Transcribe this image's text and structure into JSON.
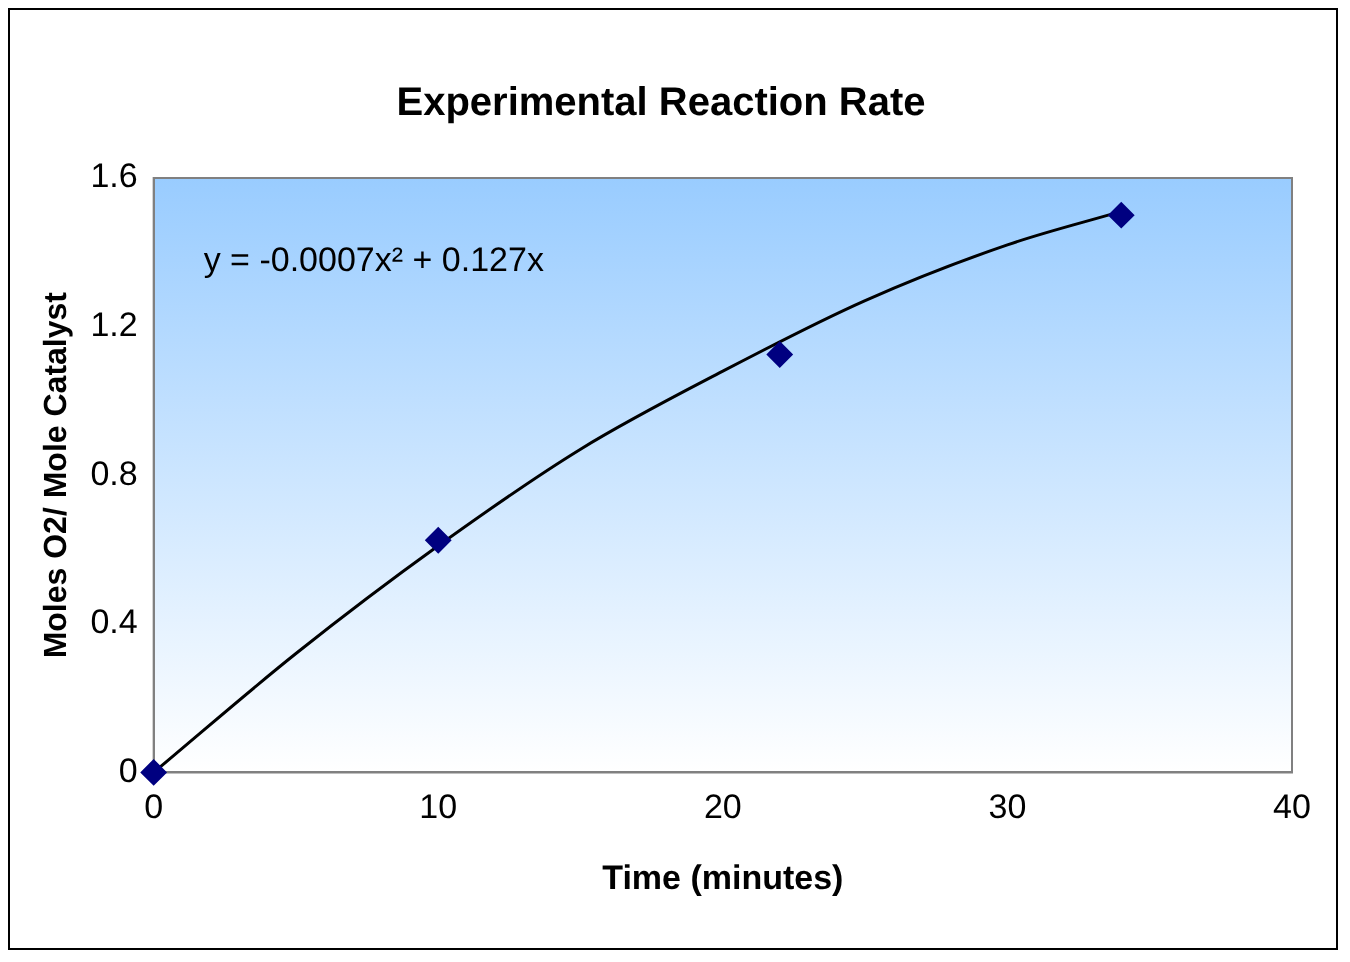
{
  "chart_data": {
    "type": "scatter",
    "title": "Experimental Reaction Rate",
    "xlabel": "Time (minutes)",
    "ylabel": "Moles O2/ Mole Catalyst",
    "xlim": [
      0,
      40
    ],
    "xticks": [
      0,
      10,
      20,
      30,
      40
    ],
    "ylim": [
      0,
      1.6
    ],
    "yticks": [
      0,
      0.4,
      0.8,
      1.2,
      1.6
    ],
    "grid": false,
    "legend": false,
    "marker": "diamond",
    "series": [
      {
        "color": "#000080",
        "x": [
          0,
          10,
          22,
          34
        ],
        "values": [
          0,
          0.625,
          1.125,
          1.5
        ]
      },
      {
        "type": "line",
        "marker": "none",
        "color": "#000000",
        "x": [
          0,
          5,
          10,
          15,
          20,
          25,
          30,
          34
        ],
        "values": [
          0,
          0.32,
          0.61,
          0.87,
          1.08,
          1.27,
          1.42,
          1.51
        ]
      }
    ],
    "annotations": [
      "y = -0.0007x² + 0.127x"
    ]
  }
}
